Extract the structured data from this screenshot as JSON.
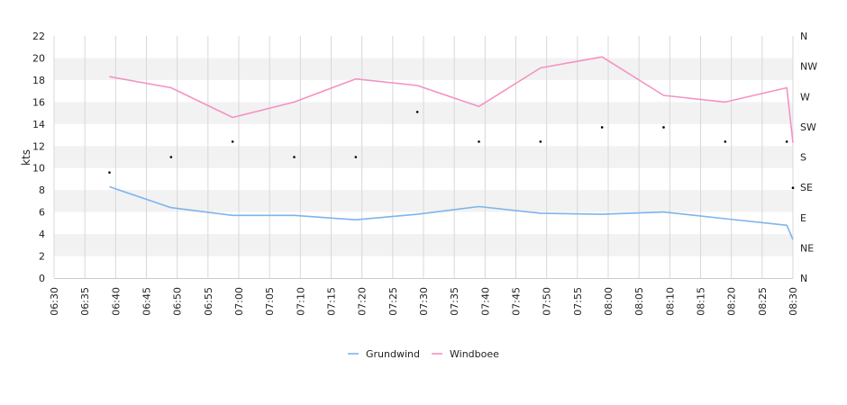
{
  "chart_data": {
    "type": "line",
    "ylabel": "kts",
    "ylim": [
      0,
      22
    ],
    "yticks": [
      0,
      2,
      4,
      6,
      8,
      10,
      12,
      14,
      16,
      18,
      20,
      22
    ],
    "xlim": [
      "06:30",
      "08:30"
    ],
    "xticks": [
      "06:30",
      "06:35",
      "06:40",
      "06:45",
      "06:50",
      "06:55",
      "07:00",
      "07:05",
      "07:10",
      "07:15",
      "07:20",
      "07:25",
      "07:30",
      "07:35",
      "07:40",
      "07:45",
      "07:50",
      "07:55",
      "08:00",
      "08:05",
      "08:10",
      "08:15",
      "08:20",
      "08:25",
      "08:30"
    ],
    "y2label": "",
    "y2ticks": [
      "N",
      "NE",
      "E",
      "SE",
      "S",
      "SW",
      "W",
      "NW",
      "N"
    ],
    "grid": "vertical lines at each x tick, alternating horizontal bands",
    "legend_position": "bottom-center",
    "series": [
      {
        "name": "Grundwind",
        "color": "#7cb5ec",
        "points": [
          [
            "06:39",
            8.3
          ],
          [
            "06:49",
            6.4
          ],
          [
            "06:59",
            5.7
          ],
          [
            "07:09",
            5.7
          ],
          [
            "07:19",
            5.3
          ],
          [
            "07:29",
            5.8
          ],
          [
            "07:39",
            6.5
          ],
          [
            "07:49",
            5.9
          ],
          [
            "07:59",
            5.8
          ],
          [
            "08:09",
            6.0
          ],
          [
            "08:19",
            5.4
          ],
          [
            "08:29",
            4.8
          ],
          [
            "08:30",
            3.5
          ]
        ]
      },
      {
        "name": "Windboee",
        "color": "#f492c2",
        "points": [
          [
            "06:39",
            18.3
          ],
          [
            "06:49",
            17.3
          ],
          [
            "06:59",
            14.6
          ],
          [
            "07:09",
            16.0
          ],
          [
            "07:19",
            18.1
          ],
          [
            "07:29",
            17.5
          ],
          [
            "07:39",
            15.6
          ],
          [
            "07:49",
            19.1
          ],
          [
            "07:59",
            20.1
          ],
          [
            "08:09",
            16.6
          ],
          [
            "08:19",
            16.0
          ],
          [
            "08:29",
            17.3
          ],
          [
            "08:30",
            12.3
          ]
        ]
      }
    ],
    "direction_markers": {
      "color": "#000000",
      "unit": "y2",
      "points": [
        [
          "06:39",
          9.6
        ],
        [
          "06:49",
          11.0
        ],
        [
          "06:59",
          12.4
        ],
        [
          "07:09",
          11.0
        ],
        [
          "07:19",
          11.0
        ],
        [
          "07:29",
          15.1
        ],
        [
          "07:39",
          12.4
        ],
        [
          "07:49",
          12.4
        ],
        [
          "07:59",
          13.7
        ],
        [
          "08:09",
          13.7
        ],
        [
          "08:19",
          12.4
        ],
        [
          "08:29",
          12.4
        ],
        [
          "08:30",
          8.2
        ]
      ]
    }
  }
}
